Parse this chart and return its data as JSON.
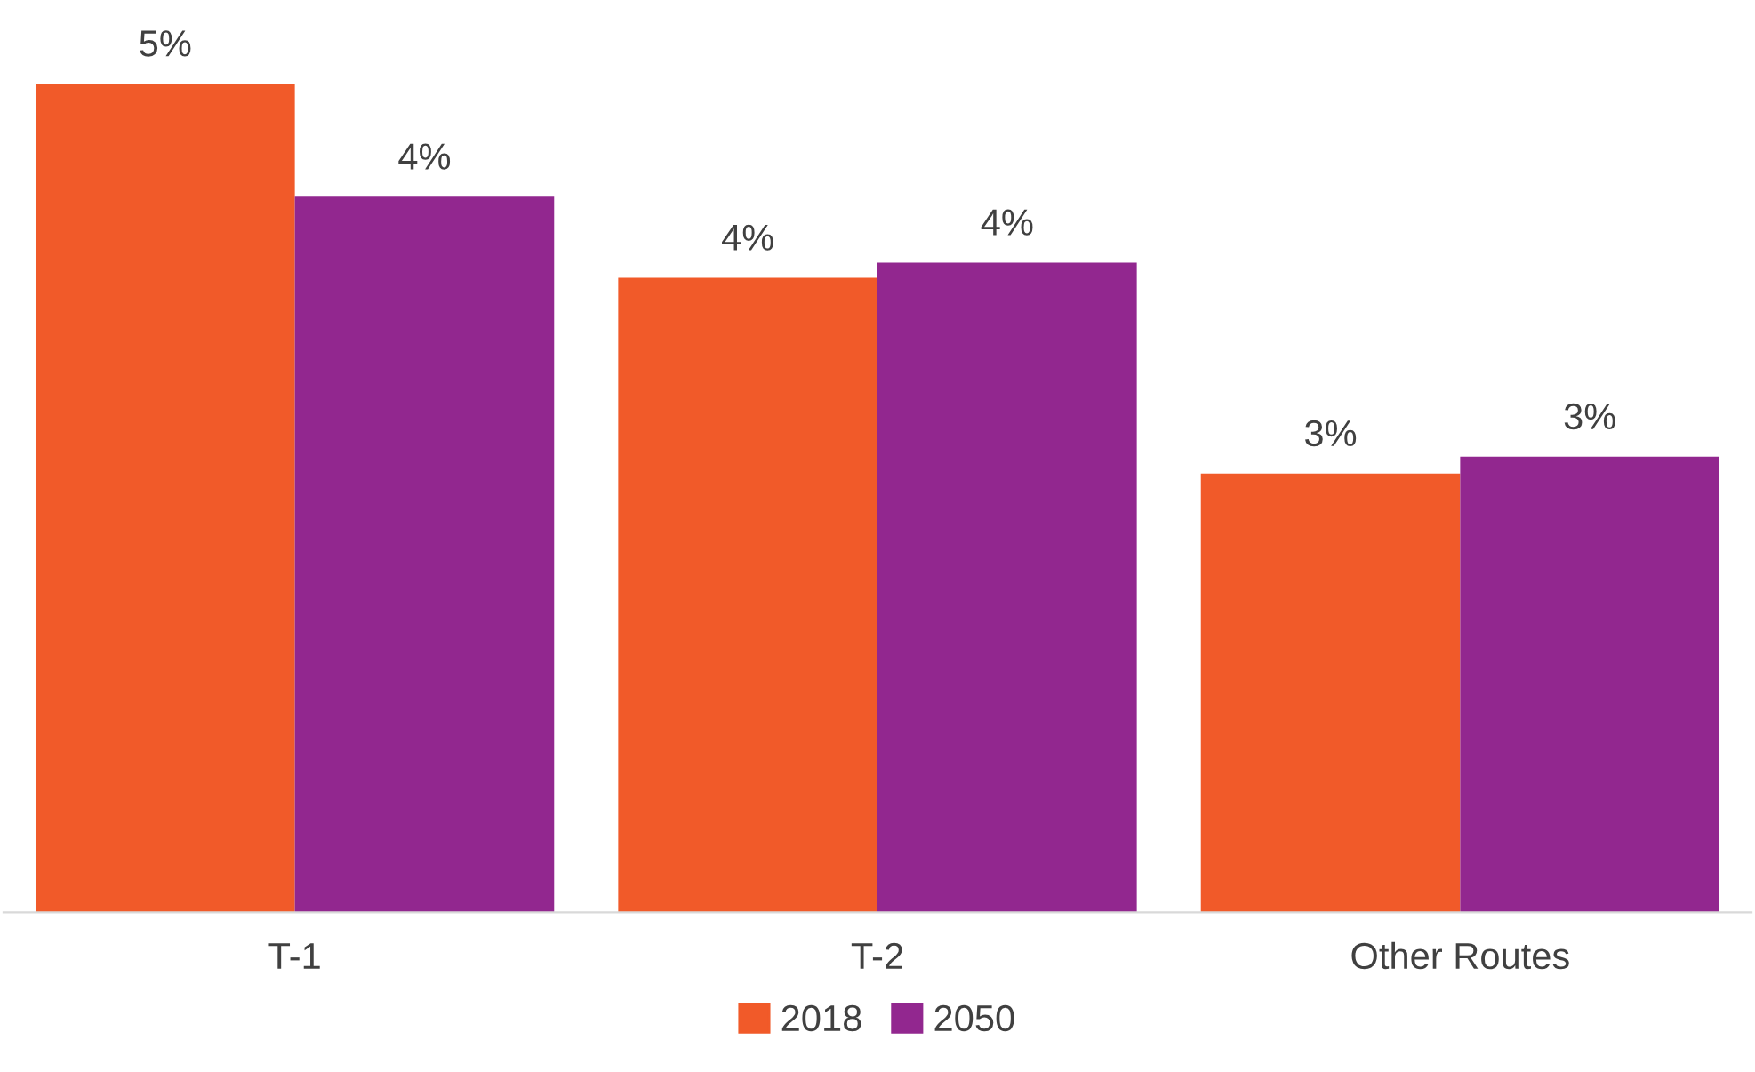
{
  "chart_data": {
    "type": "bar",
    "categories": [
      "T-1",
      "T-2",
      "Other Routes"
    ],
    "series": [
      {
        "name": "2018",
        "color": "#f15a29",
        "values": [
          4.91,
          3.76,
          2.6
        ],
        "value_labels": [
          "5%",
          "4%",
          "3%"
        ]
      },
      {
        "name": "2050",
        "color": "#92278f",
        "values": [
          4.24,
          3.85,
          2.7
        ],
        "value_labels": [
          "4%",
          "4%",
          "3%"
        ]
      }
    ],
    "legend": "bottom",
    "grid": false,
    "tick_labels": "x"
  }
}
